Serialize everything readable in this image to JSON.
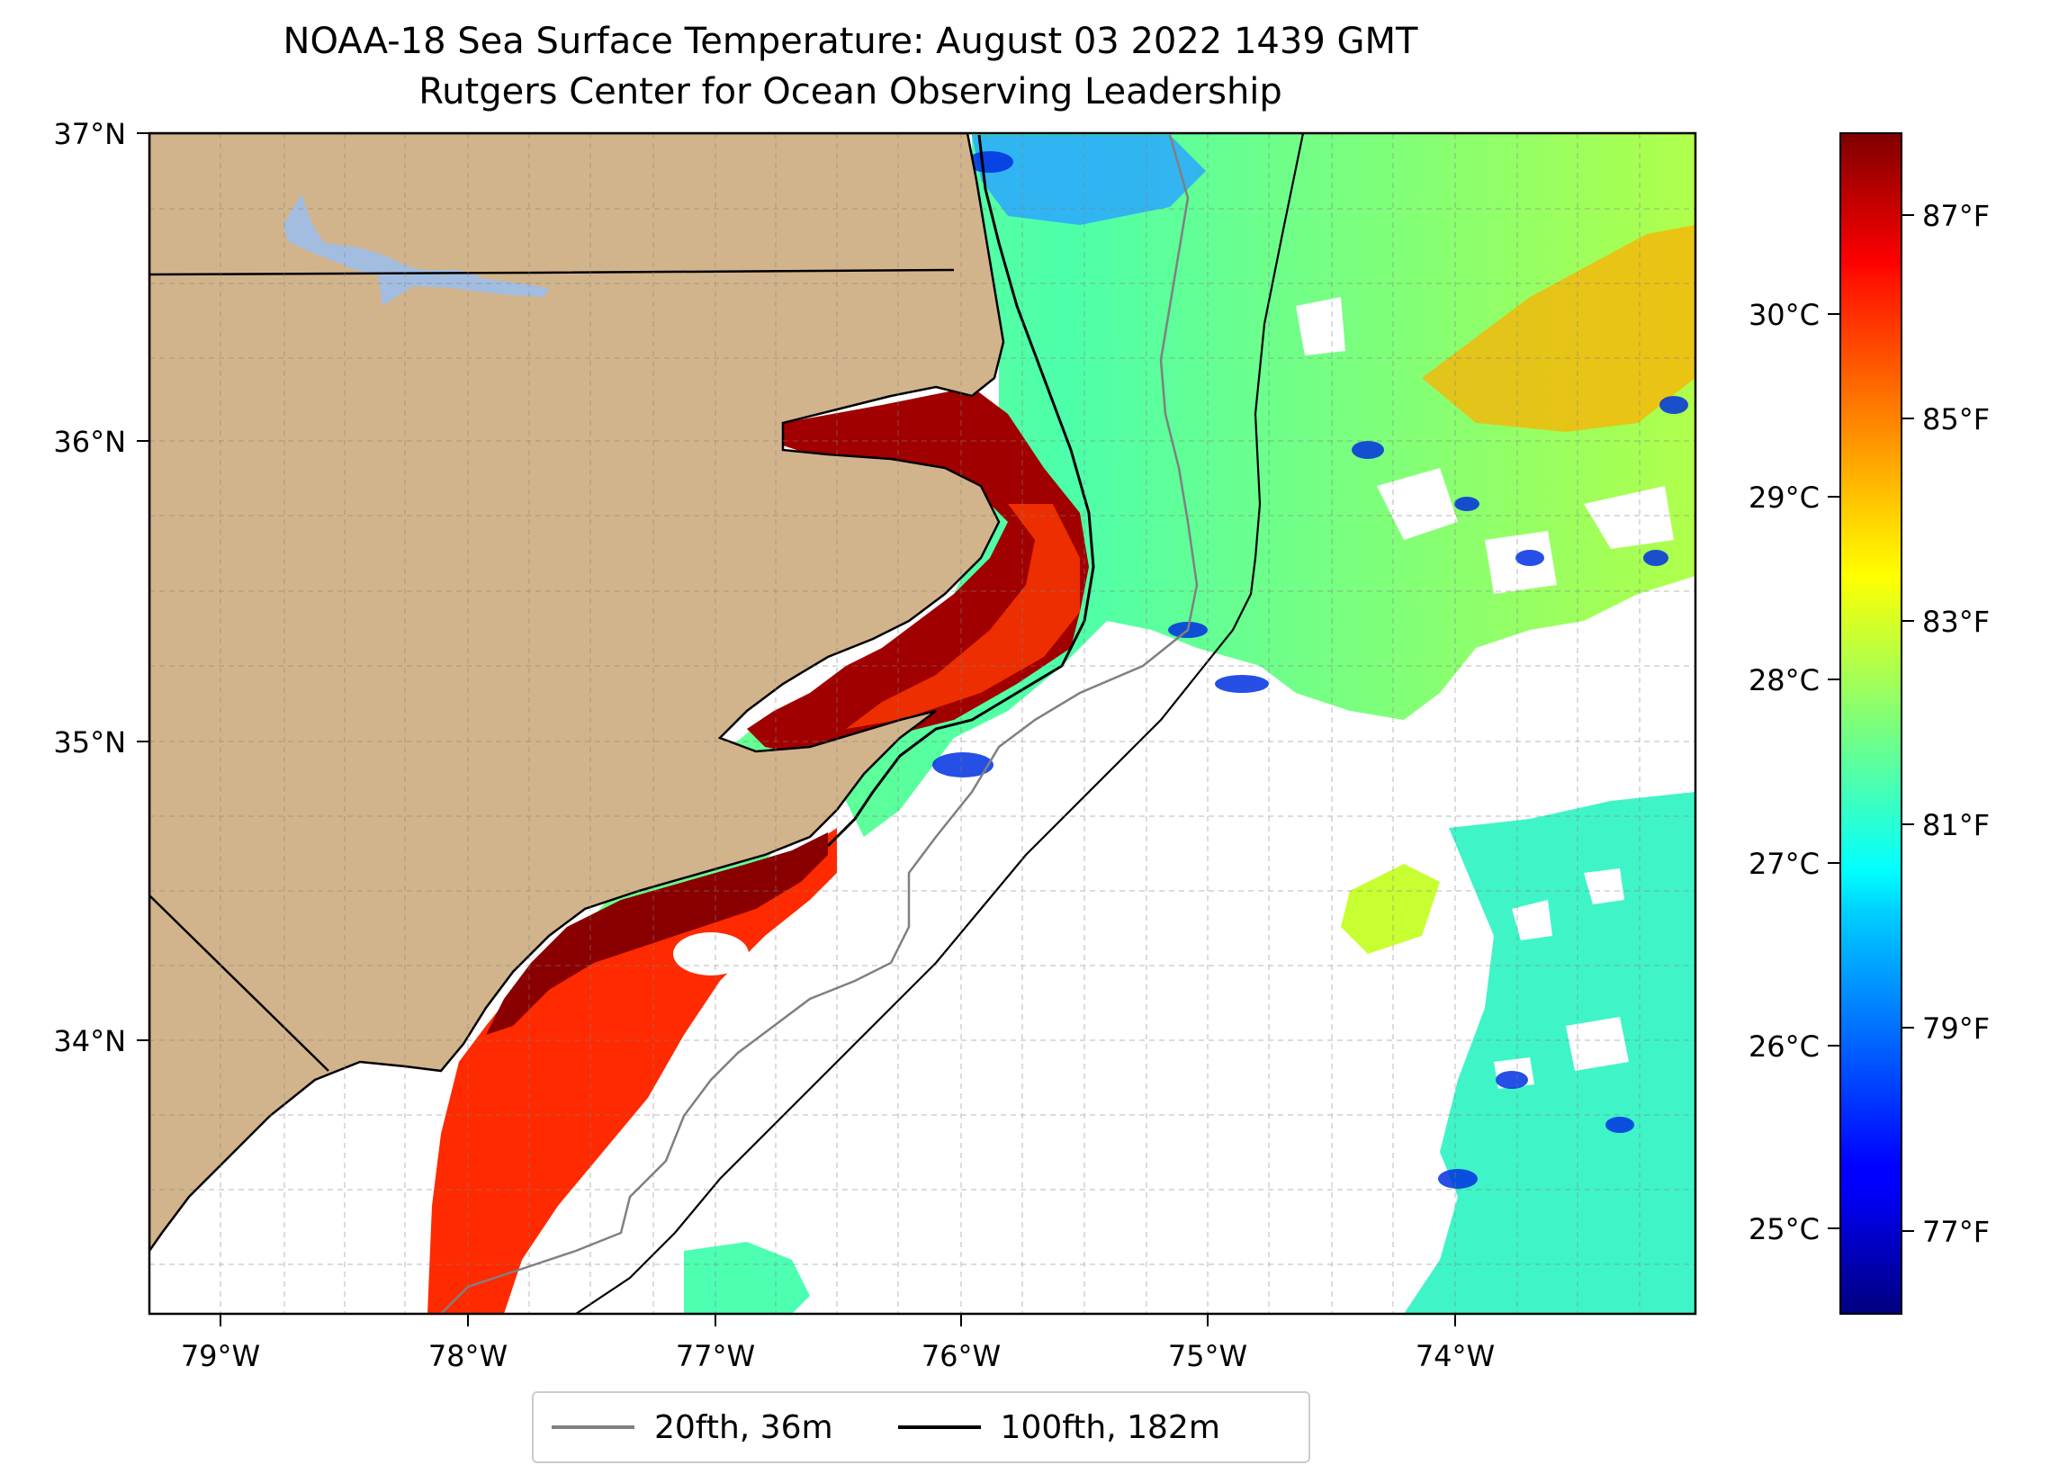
{
  "map": {
    "title_line1": "NOAA-18 Sea Surface Temperature: August 03 2022 1439 GMT",
    "title_line2": "Rutgers Center for Ocean Observing Leadership",
    "lat_labels": [
      "37°N",
      "36°N",
      "35°N",
      "34°N"
    ],
    "lon_labels": [
      "79°W",
      "78°W",
      "77°W",
      "76°W",
      "75°W",
      "74°W"
    ],
    "colors": {
      "land": "#d2b48c",
      "lake": "#a3bde0",
      "no_data": "#ffffff",
      "isobath_20fth": "#808080",
      "isobath_100fth": "#000000"
    }
  },
  "colorbar": {
    "celsius_labels": [
      "30°C",
      "29°C",
      "28°C",
      "27°C",
      "26°C",
      "25°C"
    ],
    "fahrenheit_labels": [
      "87°F",
      "85°F",
      "83°F",
      "81°F",
      "79°F",
      "77°F"
    ],
    "colormap": "jet",
    "range_f": [
      76.3,
      88.3
    ]
  },
  "legend": {
    "items": [
      {
        "label": "20fth, 36m",
        "color": "#808080"
      },
      {
        "label": "100fth, 182m",
        "color": "#000000"
      }
    ]
  }
}
